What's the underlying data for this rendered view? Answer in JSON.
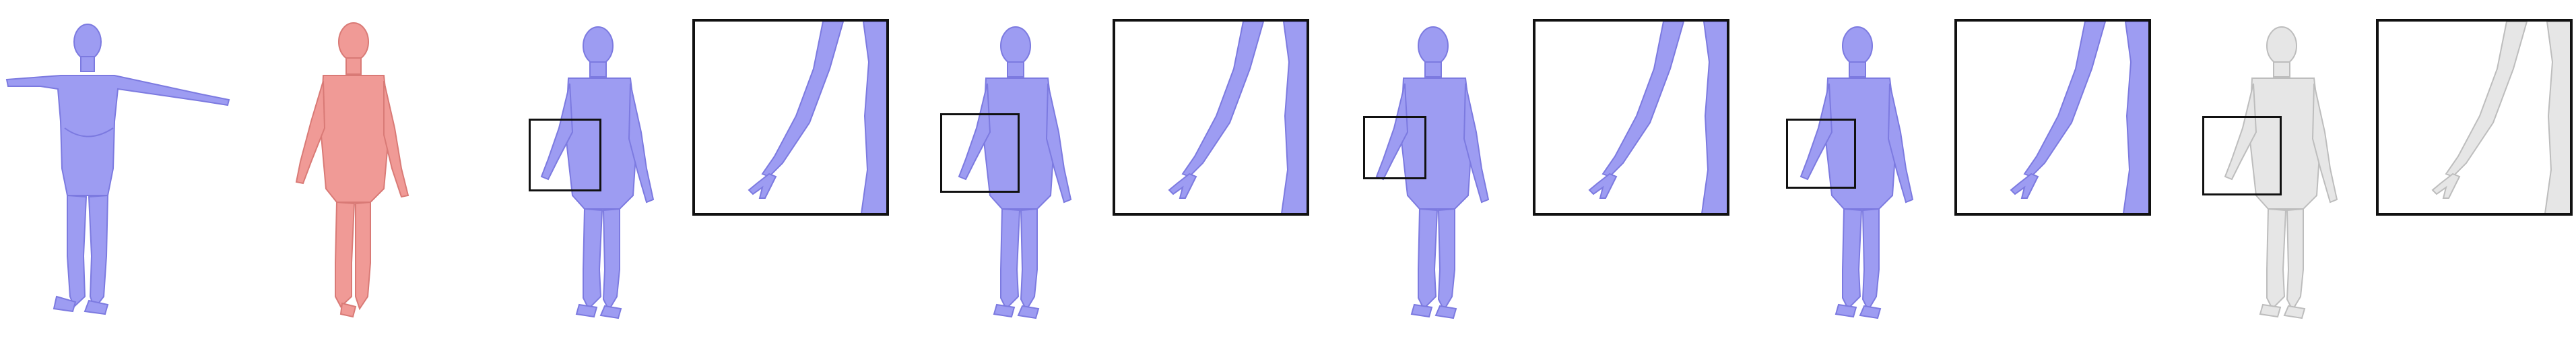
{
  "figure": {
    "colors": {
      "blue_mesh": "#9d9cf2",
      "blue_shadow": "#7c7ae0",
      "pink_mesh": "#f09a96",
      "pink_shadow": "#d97a76",
      "gray_mesh": "#e6e6e6",
      "gray_shadow": "#bdbdbd",
      "frame": "#111111"
    },
    "panels": [
      {
        "id": "template-tpose",
        "color": "blue"
      },
      {
        "id": "target",
        "color": "pink"
      },
      {
        "id": "result-1",
        "color": "blue",
        "zoom": true
      },
      {
        "id": "result-2",
        "color": "blue",
        "zoom": true
      },
      {
        "id": "result-3",
        "color": "blue",
        "zoom": true
      },
      {
        "id": "result-4",
        "color": "blue",
        "zoom": true
      },
      {
        "id": "result-5",
        "color": "gray",
        "zoom": true
      }
    ]
  }
}
